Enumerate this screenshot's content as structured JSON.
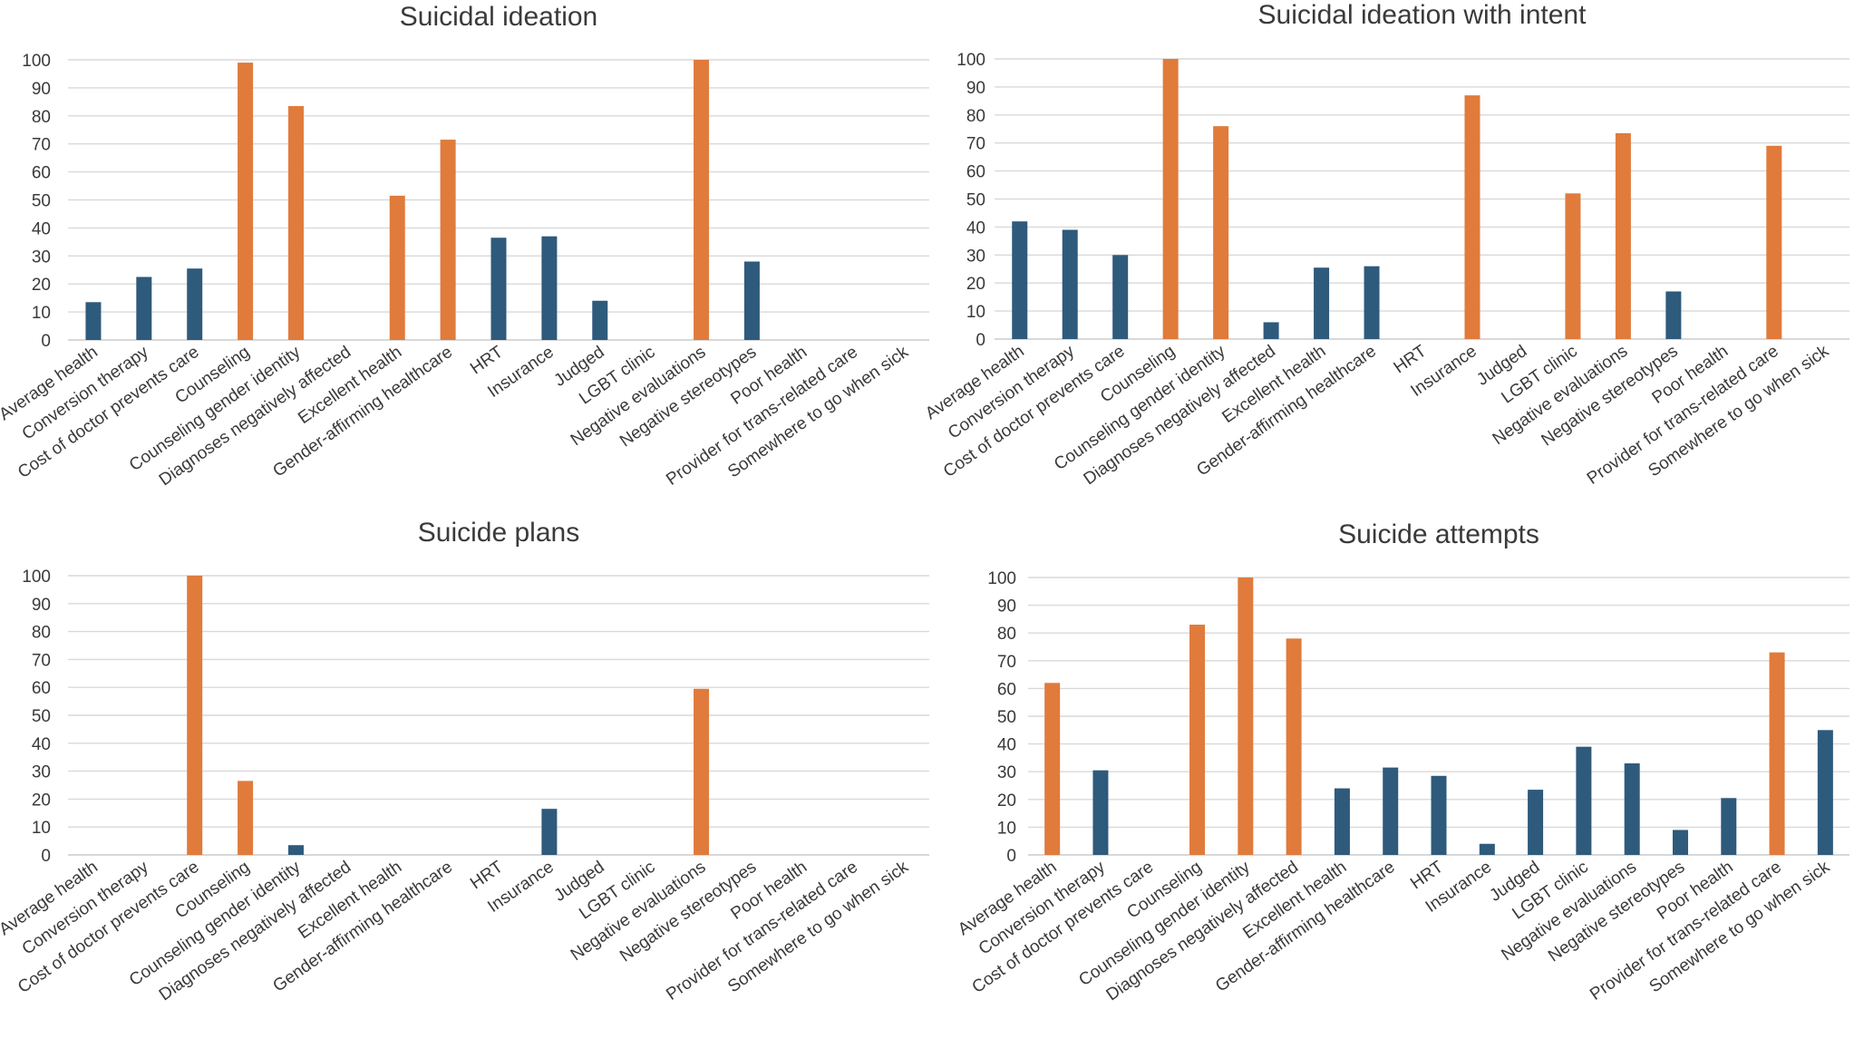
{
  "colors": {
    "highlight": "#E07B3C",
    "default": "#2E5A7C"
  },
  "chart_data": [
    {
      "type": "bar",
      "title": "Suicidal ideation",
      "ylim": [
        0,
        100
      ],
      "yticks": [
        0,
        10,
        20,
        30,
        40,
        50,
        60,
        70,
        80,
        90,
        100
      ],
      "grid": true,
      "categories": [
        "Average health",
        "Conversion therapy",
        "Cost of doctor prevents care",
        "Counseling",
        "Counseling gender identity",
        "Diagnoses negatively affected",
        "Excellent health",
        "Gender-affirming healthcare",
        "HRT",
        "Insurance",
        "Judged",
        "LGBT clinic",
        "Negative evaluations",
        "Negative stereotypes",
        "Poor health",
        "Provider for trans-related care",
        "Somewhere to go when sick"
      ],
      "values": [
        13.5,
        22.5,
        25.5,
        99,
        83.5,
        0,
        51.5,
        71.5,
        36.5,
        37,
        14,
        0,
        100,
        28,
        0,
        0,
        0
      ],
      "highlighted": [
        false,
        false,
        false,
        true,
        true,
        false,
        true,
        true,
        false,
        false,
        false,
        false,
        true,
        false,
        false,
        false,
        false
      ]
    },
    {
      "type": "bar",
      "title": "Suicidal ideation with intent",
      "ylim": [
        0,
        100
      ],
      "yticks": [
        0,
        10,
        20,
        30,
        40,
        50,
        60,
        70,
        80,
        90,
        100
      ],
      "grid": true,
      "categories": [
        "Average health",
        "Conversion therapy",
        "Cost of doctor prevents care",
        "Counseling",
        "Counseling gender identity",
        "Diagnoses negatively affected",
        "Excellent health",
        "Gender-affirming healthcare",
        "HRT",
        "Insurance",
        "Judged",
        "LGBT clinic",
        "Negative evaluations",
        "Negative stereotypes",
        "Poor health",
        "Provider for trans-related care",
        "Somewhere to go when sick"
      ],
      "values": [
        42,
        39,
        30,
        100,
        76,
        6,
        25.5,
        26,
        0,
        87,
        0,
        52,
        73.5,
        17,
        0,
        69,
        0
      ],
      "highlighted": [
        false,
        false,
        false,
        true,
        true,
        false,
        false,
        false,
        false,
        true,
        false,
        true,
        true,
        false,
        false,
        true,
        false
      ]
    },
    {
      "type": "bar",
      "title": "Suicide plans",
      "ylim": [
        0,
        100
      ],
      "yticks": [
        0,
        10,
        20,
        30,
        40,
        50,
        60,
        70,
        80,
        90,
        100
      ],
      "grid": true,
      "categories": [
        "Average health",
        "Conversion therapy",
        "Cost of doctor prevents care",
        "Counseling",
        "Counseling gender identity",
        "Diagnoses negatively affected",
        "Excellent health",
        "Gender-affirming healthcare",
        "HRT",
        "Insurance",
        "Judged",
        "LGBT clinic",
        "Negative evaluations",
        "Negative stereotypes",
        "Poor health",
        "Provider for trans-related care",
        "Somewhere to go when sick"
      ],
      "values": [
        0,
        0,
        100,
        26.5,
        3.5,
        0,
        0,
        0,
        0,
        16.5,
        0,
        0,
        59.5,
        0,
        0,
        0,
        0
      ],
      "highlighted": [
        false,
        false,
        true,
        true,
        false,
        false,
        false,
        false,
        false,
        false,
        false,
        false,
        true,
        false,
        false,
        false,
        false
      ]
    },
    {
      "type": "bar",
      "title": "Suicide attempts",
      "ylim": [
        0,
        100
      ],
      "yticks": [
        0,
        10,
        20,
        30,
        40,
        50,
        60,
        70,
        80,
        90,
        100
      ],
      "grid": true,
      "categories": [
        "Average health",
        "Conversion therapy",
        "Cost of doctor prevents care",
        "Counseling",
        "Counseling gender identity",
        "Diagnoses negatively affected",
        "Excellent health",
        "Gender-affirming healthcare",
        "HRT",
        "Insurance",
        "Judged",
        "LGBT clinic",
        "Negative evaluations",
        "Negative stereotypes",
        "Poor health",
        "Provider for trans-related care",
        "Somewhere to go when sick"
      ],
      "values": [
        62,
        30.5,
        0,
        83,
        100,
        78,
        24,
        31.5,
        28.5,
        4,
        23.5,
        39,
        33,
        9,
        20.5,
        73,
        45
      ],
      "highlighted": [
        true,
        false,
        false,
        true,
        true,
        true,
        false,
        false,
        false,
        false,
        false,
        false,
        false,
        false,
        false,
        true,
        false
      ]
    }
  ]
}
